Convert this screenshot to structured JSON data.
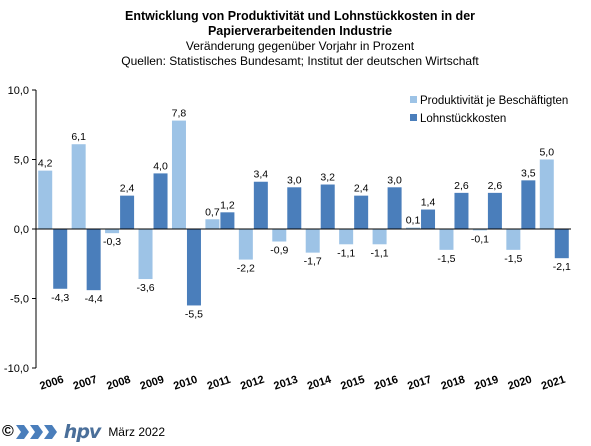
{
  "titles": {
    "line1": "Entwicklung von Produktivität und Lohnstückkosten  in der",
    "line2": "Papierverarbeitenden Industrie",
    "line3": "Veränderung  gegenüber  Vorjahr  in Prozent",
    "line4": "Quellen: Statistisches Bundesamt; Institut der deutschen Wirtschaft"
  },
  "footer": {
    "copyright_symbol": "©",
    "logo_text": "hpv",
    "date": "März 2022"
  },
  "colors": {
    "productivity": "#9dc3e6",
    "unit_labor_costs": "#4a7ebb"
  },
  "chart_data": {
    "type": "bar",
    "title": "",
    "xlabel": "",
    "ylabel": "",
    "categories": [
      "2006",
      "2007",
      "2008",
      "2009",
      "2010",
      "2011",
      "2012",
      "2013",
      "2014",
      "2015",
      "2016",
      "2017",
      "2018",
      "2019",
      "2020",
      "2021"
    ],
    "series": [
      {
        "name": "Produktivität je Beschäftigten",
        "values": [
          4.2,
          6.1,
          -0.3,
          -3.6,
          7.8,
          0.7,
          -2.2,
          -0.9,
          -1.7,
          -1.1,
          -1.1,
          0.1,
          -1.5,
          -0.1,
          -1.5,
          5.0
        ]
      },
      {
        "name": "Lohnstückkosten",
        "values": [
          -4.3,
          -4.4,
          2.4,
          4.0,
          -5.5,
          1.2,
          3.4,
          3.0,
          3.2,
          2.4,
          3.0,
          1.4,
          2.6,
          2.6,
          3.5,
          -2.1
        ]
      }
    ],
    "ylim": [
      -10,
      10
    ],
    "yticks": [
      "10,0",
      "5,0",
      "0,0",
      "-5,0",
      "-10,0"
    ],
    "ytick_values": [
      10,
      5,
      0,
      -5,
      -10
    ],
    "grid": false,
    "legend_position": "top-right"
  }
}
